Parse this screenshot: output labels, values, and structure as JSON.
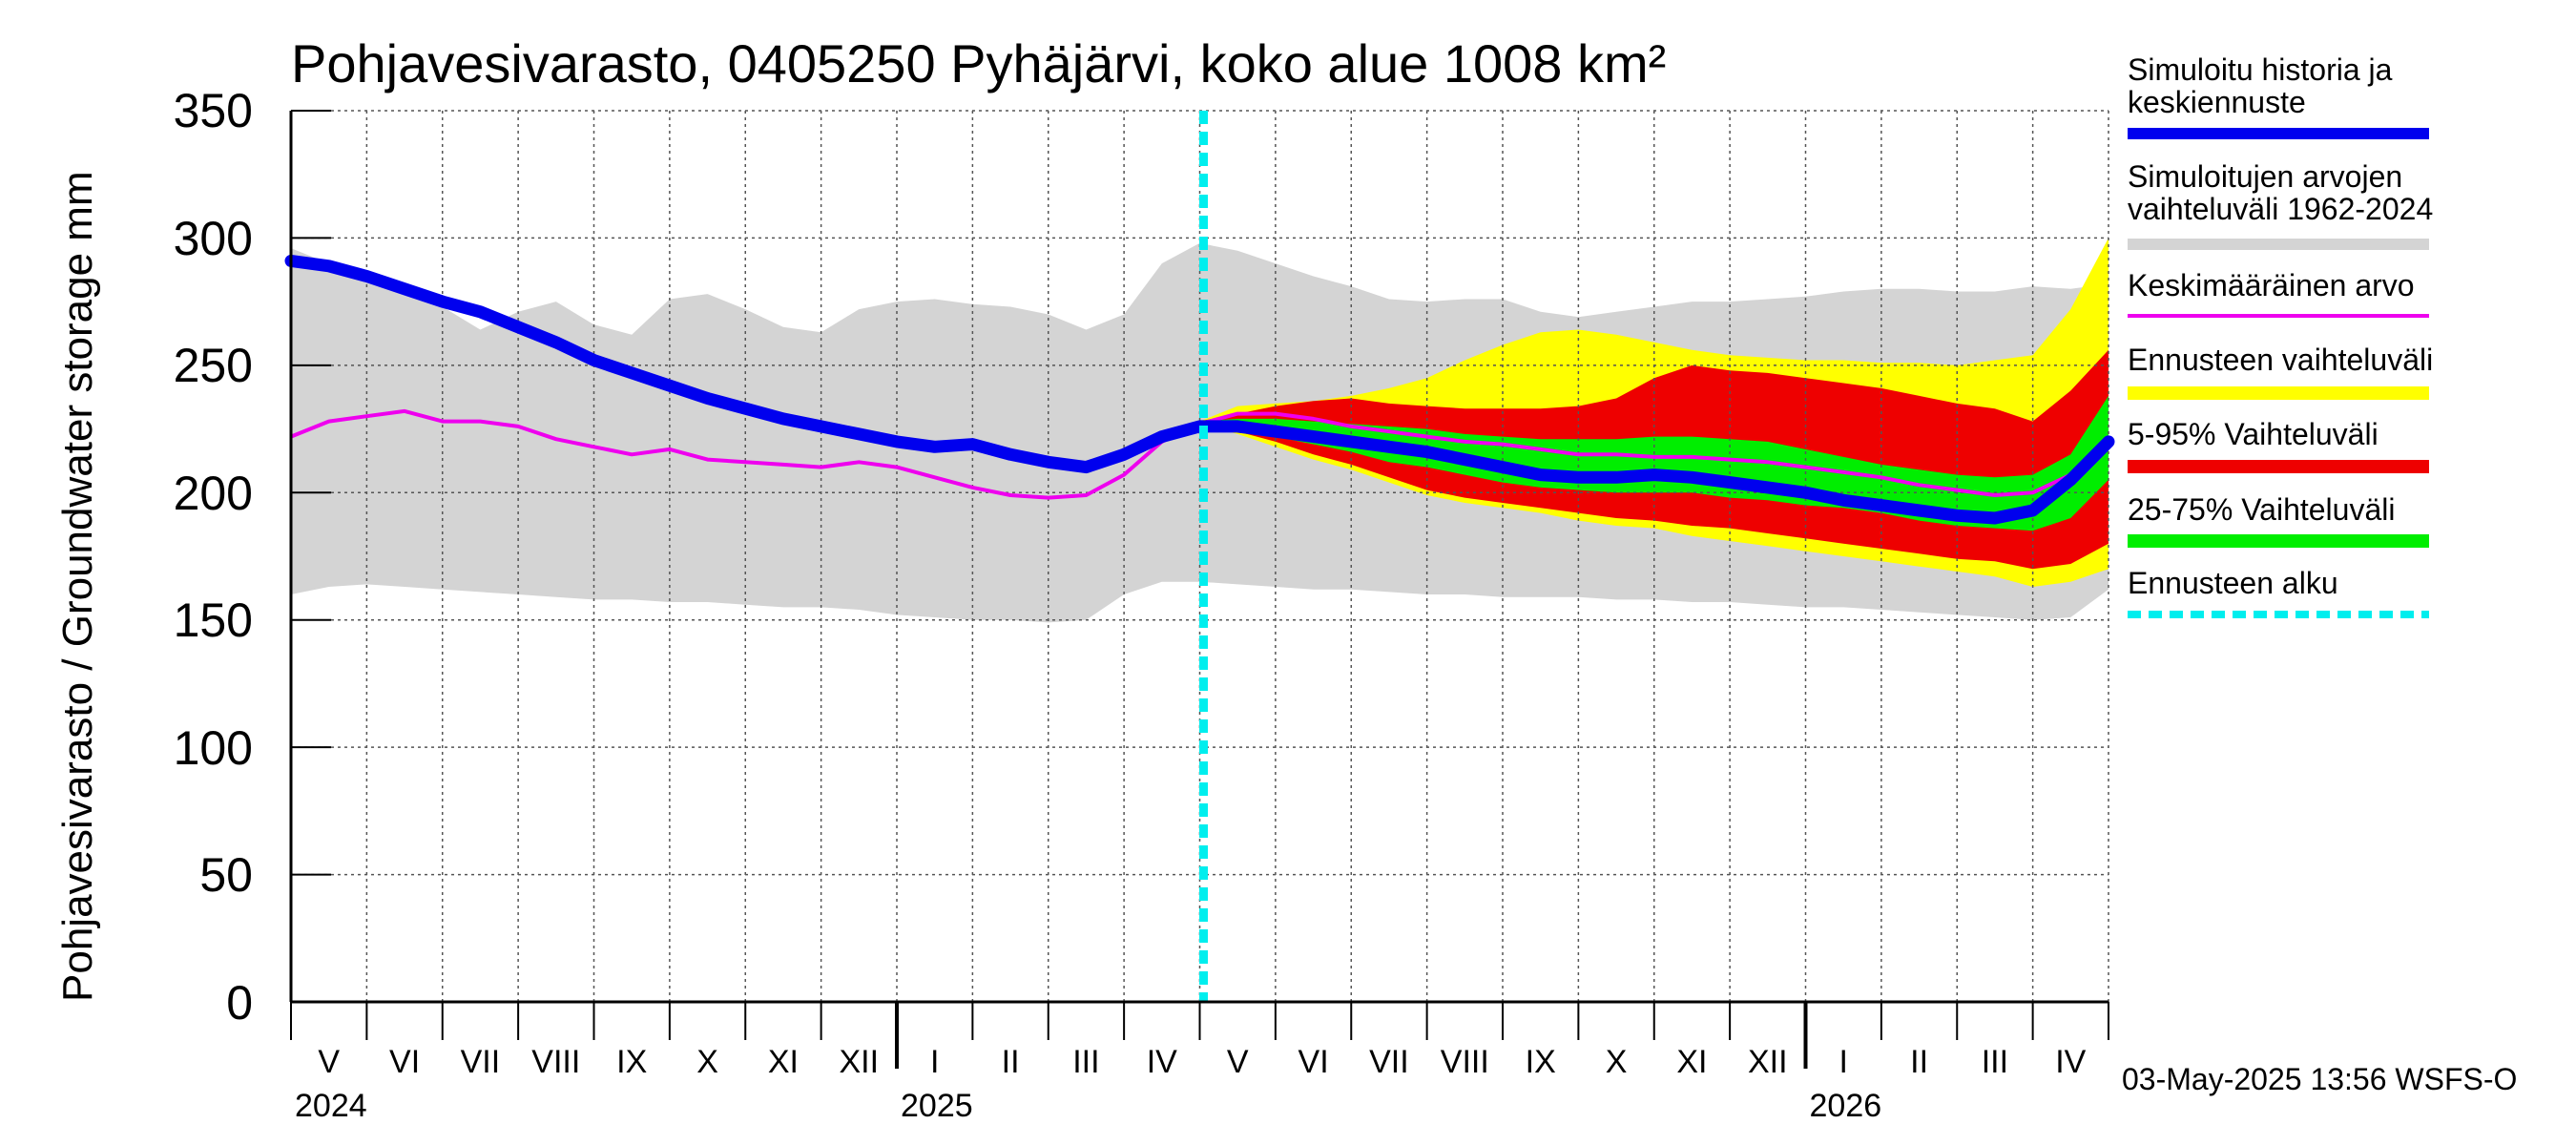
{
  "chart_data": {
    "type": "area",
    "title": "Pohjavesivarasto, 0405250 Pyhäjärvi, koko alue 1008 km²",
    "ylabel": "Pohjavesivarasto / Groundwater storage   mm",
    "ylim": [
      0,
      350
    ],
    "yticks": [
      "0",
      "50",
      "100",
      "150",
      "200",
      "250",
      "300",
      "350"
    ],
    "months": [
      "V",
      "VI",
      "VII",
      "VIII",
      "IX",
      "X",
      "XI",
      "XII",
      "I",
      "II",
      "III",
      "IV",
      "V",
      "VI",
      "VII",
      "VIII",
      "IX",
      "X",
      "XI",
      "XII",
      "I",
      "II",
      "III",
      "IV"
    ],
    "years": [
      "2024",
      "2025",
      "2026"
    ],
    "forecast_start": 12,
    "timestamp": "03-May-2025 13:56 WSFS-O",
    "legend": [
      {
        "label": "Simuloitu historia ja keskiennuste",
        "color": "#0000ee",
        "style": "thick"
      },
      {
        "label": "Simuloitujen arvojen vaihteluväli 1962-2024",
        "color": "#d4d4d4",
        "style": "band"
      },
      {
        "label": "Keskimääräinen arvo",
        "color": "#ee00ee",
        "style": "thin"
      },
      {
        "label": "Ennusteen vaihteluväli",
        "color": "#ffff00",
        "style": "band"
      },
      {
        "label": "5-95% Vaihteluväli",
        "color": "#ee0000",
        "style": "band"
      },
      {
        "label": "25-75% Vaihteluväli",
        "color": "#00ee00",
        "style": "band"
      },
      {
        "label": "Ennusteen alku",
        "color": "#00eeee",
        "style": "dashed"
      }
    ],
    "x": [
      0,
      0.5,
      1,
      1.5,
      2,
      2.5,
      3,
      3.5,
      4,
      4.5,
      5,
      5.5,
      6,
      6.5,
      7,
      7.5,
      8,
      8.5,
      9,
      9.5,
      10,
      10.5,
      11,
      11.5,
      12,
      12.5,
      13,
      13.5,
      14,
      14.5,
      15,
      15.5,
      16,
      16.5,
      17,
      17.5,
      18,
      18.5,
      19,
      19.5,
      20,
      20.5,
      21,
      21.5,
      22,
      22.5,
      23,
      23.5,
      24
    ],
    "series": [
      {
        "name": "Simuloitu historia ja keskiennuste",
        "color": "#0000ee",
        "values": [
          291,
          289,
          285,
          280,
          275,
          271,
          265,
          259,
          252,
          247,
          242,
          237,
          233,
          229,
          226,
          223,
          220,
          218,
          219,
          215,
          212,
          210,
          215,
          222,
          226,
          226,
          224,
          222,
          220,
          218,
          216,
          213,
          210,
          207,
          206,
          206,
          207,
          206,
          204,
          202,
          200,
          197,
          195,
          193,
          191,
          190,
          193,
          205,
          220
        ]
      },
      {
        "name": "Keskimääräinen arvo",
        "color": "#ee00ee",
        "values": [
          222,
          228,
          230,
          232,
          228,
          228,
          226,
          221,
          218,
          215,
          217,
          213,
          212,
          211,
          210,
          212,
          210,
          206,
          202,
          199,
          198,
          199,
          207,
          220,
          227,
          231,
          231,
          229,
          226,
          224,
          222,
          220,
          219,
          217,
          215,
          215,
          214,
          214,
          213,
          212,
          210,
          208,
          206,
          203,
          201,
          199,
          200,
          207,
          222
        ]
      }
    ],
    "bands": [
      {
        "name": "Simuloitujen arvojen vaihteluväli 1962-2024",
        "color": "#d4d4d4",
        "lower": [
          160,
          163,
          164,
          163,
          162,
          161,
          160,
          159,
          158,
          158,
          157,
          157,
          156,
          155,
          155,
          154,
          152,
          151,
          150,
          150,
          149,
          150,
          160,
          165,
          165,
          164,
          163,
          162,
          162,
          161,
          160,
          160,
          159,
          159,
          159,
          158,
          158,
          157,
          157,
          156,
          155,
          155,
          154,
          153,
          152,
          151,
          150,
          151,
          162
        ],
        "upper": [
          296,
          290,
          285,
          280,
          273,
          264,
          271,
          275,
          266,
          262,
          276,
          278,
          272,
          265,
          263,
          272,
          275,
          276,
          274,
          273,
          270,
          264,
          270,
          290,
          298,
          295,
          290,
          285,
          281,
          276,
          275,
          276,
          276,
          271,
          269,
          271,
          273,
          275,
          275,
          276,
          277,
          279,
          280,
          280,
          279,
          279,
          281,
          280,
          282
        ]
      },
      {
        "name": "Ennusteen vaihteluväli",
        "color": "#ffff00",
        "lower": [
          227,
          223,
          218,
          213,
          209,
          204,
          199,
          196,
          194,
          192,
          189,
          187,
          186,
          183,
          181,
          179,
          177,
          175,
          173,
          171,
          169,
          167,
          163,
          165,
          170
        ],
        "upper": [
          228,
          234,
          235,
          236,
          238,
          241,
          245,
          252,
          258,
          263,
          264,
          262,
          259,
          256,
          254,
          253,
          252,
          252,
          251,
          251,
          250,
          252,
          254,
          272,
          300
        ]
      },
      {
        "name": "5-95% Vaihteluväli",
        "color": "#ee0000",
        "lower": [
          227,
          224,
          220,
          215,
          211,
          206,
          201,
          198,
          196,
          194,
          192,
          190,
          189,
          187,
          186,
          184,
          182,
          180,
          178,
          176,
          174,
          173,
          170,
          172,
          180
        ],
        "upper": [
          228,
          231,
          234,
          236,
          237,
          235,
          234,
          233,
          233,
          233,
          234,
          237,
          245,
          250,
          248,
          247,
          245,
          243,
          241,
          238,
          235,
          233,
          228,
          240,
          256
        ]
      },
      {
        "name": "25-75% Vaihteluväli",
        "color": "#00ee00",
        "lower": [
          226,
          225,
          222,
          219,
          216,
          212,
          210,
          207,
          204,
          202,
          201,
          200,
          200,
          200,
          198,
          197,
          195,
          194,
          192,
          189,
          187,
          186,
          185,
          190,
          205
        ],
        "upper": [
          228,
          229,
          229,
          228,
          227,
          226,
          225,
          223,
          222,
          221,
          221,
          221,
          222,
          222,
          221,
          220,
          217,
          214,
          211,
          209,
          207,
          206,
          207,
          215,
          238
        ]
      }
    ]
  }
}
